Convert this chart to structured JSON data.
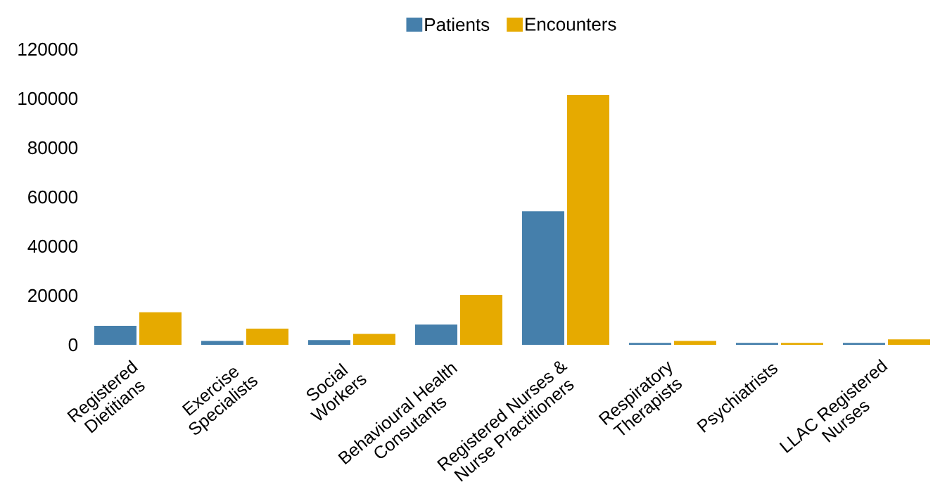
{
  "chart_data": {
    "type": "bar",
    "categories": [
      "Registered Dietitians",
      "Exercise Specialists",
      "Social Workers",
      "Behavioural Health Consutants",
      "Registered Nurses & Nurse Practitioners",
      "Respiratory Therapists",
      "Psychiatrists",
      "LLAC Registered Nurses"
    ],
    "series": [
      {
        "name": "Patients",
        "color": "#457fab",
        "values": [
          7700,
          1600,
          1900,
          8200,
          54200,
          800,
          800,
          800
        ]
      },
      {
        "name": "Encounters",
        "color": "#e6aa00",
        "values": [
          13200,
          6600,
          4400,
          20300,
          101400,
          1600,
          800,
          2200
        ]
      }
    ],
    "ylim": [
      0,
      120000
    ],
    "yticks": [
      0,
      20000,
      40000,
      60000,
      80000,
      100000,
      120000
    ],
    "legend": "top"
  }
}
